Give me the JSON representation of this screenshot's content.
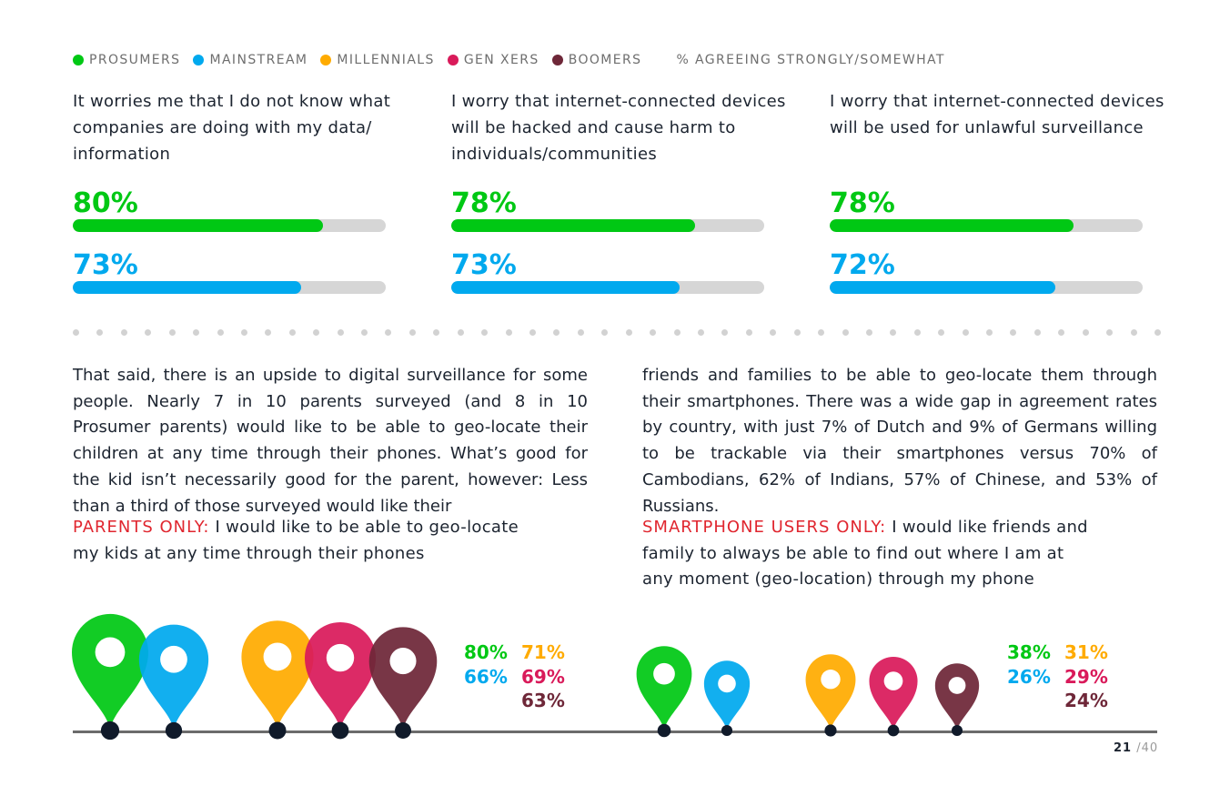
{
  "colors": {
    "prosumers": "#00c814",
    "mainstream": "#00a9ee",
    "millennials": "#ffab00",
    "genxers": "#d91a5a",
    "boomers": "#6e2738",
    "accent_red": "#e0262f",
    "dark": "#1c2430"
  },
  "legend": {
    "items": [
      {
        "label": "PROSUMERS",
        "color": "#00c814"
      },
      {
        "label": "MAINSTREAM",
        "color": "#00a9ee"
      },
      {
        "label": "MILLENNIALS",
        "color": "#ffab00"
      },
      {
        "label": "GEN XERS",
        "color": "#d91a5a"
      },
      {
        "label": "BOOMERS",
        "color": "#6e2738"
      }
    ],
    "note": "% AGREEING STRONGLY/SOMEWHAT"
  },
  "chart_data": [
    {
      "type": "bar",
      "title": "It worries me that I do not know what companies are doing with my data/ information",
      "categories": [
        "Prosumers",
        "Mainstream"
      ],
      "values": [
        80,
        73
      ],
      "labels": [
        "80%",
        "73%"
      ],
      "ylim": [
        0,
        100
      ]
    },
    {
      "type": "bar",
      "title": "I worry that internet-connected devices will be hacked and cause harm to individuals/communities",
      "categories": [
        "Prosumers",
        "Mainstream"
      ],
      "values": [
        78,
        73
      ],
      "labels": [
        "78%",
        "73%"
      ],
      "ylim": [
        0,
        100
      ]
    },
    {
      "type": "bar",
      "title": "I worry that internet-connected devices will be used for unlawful surveillance",
      "categories": [
        "Prosumers",
        "Mainstream"
      ],
      "values": [
        78,
        72
      ],
      "labels": [
        "78%",
        "72%"
      ],
      "ylim": [
        0,
        100
      ]
    },
    {
      "type": "pin",
      "tag": "PARENTS ONLY:",
      "title": "I would like to be able to geo-locate my kids at any time through their phones",
      "categories": [
        "Prosumers",
        "Mainstream",
        "Millennials",
        "Gen Xers",
        "Boomers"
      ],
      "values": [
        80,
        66,
        71,
        69,
        63
      ],
      "labels": [
        "80%",
        "66%",
        "71%",
        "69%",
        "63%"
      ]
    },
    {
      "type": "pin",
      "tag": "SMARTPHONE USERS ONLY:",
      "title": "I would like friends and family to always be able to find out where I am at any moment (geo-location) through my phone",
      "categories": [
        "Prosumers",
        "Mainstream",
        "Millennials",
        "Gen Xers",
        "Boomers"
      ],
      "values": [
        38,
        26,
        31,
        29,
        24
      ],
      "labels": [
        "38%",
        "26%",
        "31%",
        "29%",
        "24%"
      ]
    }
  ],
  "stats": [
    {
      "text": "It worries me that I do not know what companies are doing with my data/ information",
      "pct1": "80%",
      "pct2": "73%"
    },
    {
      "text": "I worry that internet-connected devices will be hacked and cause harm to individuals/communities",
      "pct1": "78%",
      "pct2": "73%"
    },
    {
      "text": "I worry that internet-connected devices will be used for unlawful surveillance",
      "pct1": "78%",
      "pct2": "72%"
    }
  ],
  "body": {
    "left": "That said, there is an upside to digital surveillance for some people. Nearly 7 in 10 parents surveyed (and 8 in 10 Prosumer parents) would like to be able to geo-locate their children at any time through their phones. What’s good for the kid isn’t necessarily good for the parent, however: Less than a third of those surveyed would like their",
    "right": "friends and families to be able to geo-locate them through their smartphones. There was a wide gap in agreement rates by country, with just 7% of Dutch and 9% of Germans willing to be trackable via their smartphones versus 70% of Cambodians, 62% of Indians, 57% of Chinese, and 53% of Russians."
  },
  "questions": {
    "parents": {
      "tag": "PARENTS ONLY:",
      "text": "I would like to be able to geo-locate my kids at any time through their phones"
    },
    "smartphone": {
      "tag": "SMARTPHONE USERS ONLY:",
      "text": "I would like friends and family to always be able to find out where I am at any moment (geo-location) through my phone"
    }
  },
  "page": {
    "current": "21",
    "total": "/40"
  }
}
